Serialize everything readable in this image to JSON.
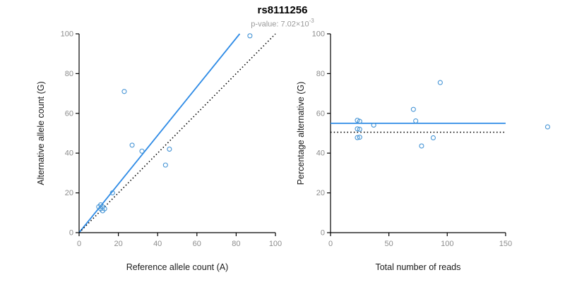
{
  "header": {
    "title": "rs8111256",
    "p_value_label": "p-value:",
    "p_value_mantissa": "7.02×10",
    "p_value_exponent": "-3"
  },
  "styles": {
    "line_blue": "#2e8be6",
    "point_blue": "#4695d6",
    "axis_color": "#000000",
    "tick_label_color": "#8c8c8c",
    "axis_label_color": "#1a1a1a",
    "title_color": "#000000",
    "subtitle_color": "#9a9a9a",
    "point_radius": 3
  },
  "chart_data": [
    {
      "type": "scatter",
      "title": "",
      "xlabel": "Reference allele count (A)",
      "ylabel": "Alternative allele count (G)",
      "xlim": [
        0,
        100
      ],
      "ylim": [
        0,
        100
      ],
      "xticks": [
        0,
        20,
        40,
        60,
        80,
        100
      ],
      "yticks": [
        0,
        20,
        40,
        60,
        80,
        100
      ],
      "grid": false,
      "legend": "none",
      "points": [
        [
          10,
          13
        ],
        [
          11,
          12
        ],
        [
          11,
          14
        ],
        [
          12,
          11
        ],
        [
          12,
          13
        ],
        [
          13,
          12
        ],
        [
          17,
          20
        ],
        [
          23,
          71
        ],
        [
          27,
          44
        ],
        [
          32,
          41
        ],
        [
          44,
          34
        ],
        [
          46,
          42
        ],
        [
          87,
          99
        ]
      ],
      "lines": [
        {
          "name": "fitted-proportion",
          "style": "solid",
          "color": "#2e8be6",
          "x1": 0,
          "y1": 0,
          "x2": 81.8,
          "y2": 100
        },
        {
          "name": "identity",
          "style": "dotted",
          "color": "#000000",
          "x1": 0,
          "y1": 0,
          "x2": 100,
          "y2": 100
        }
      ]
    },
    {
      "type": "scatter",
      "title": "",
      "xlabel": "Total number of reads",
      "ylabel": "Percentage alternative (G)",
      "xlim": [
        0,
        190
      ],
      "ylim": [
        0,
        100
      ],
      "xticks": [
        0,
        50,
        100,
        150
      ],
      "yticks": [
        0,
        20,
        40,
        60,
        80,
        100
      ],
      "grid": false,
      "legend": "none",
      "points": [
        [
          23,
          56.5
        ],
        [
          23,
          52.2
        ],
        [
          25,
          56.0
        ],
        [
          23,
          47.8
        ],
        [
          25,
          52.0
        ],
        [
          25,
          48.0
        ],
        [
          37,
          54.1
        ],
        [
          94,
          75.5
        ],
        [
          71,
          62.0
        ],
        [
          73,
          56.2
        ],
        [
          78,
          43.6
        ],
        [
          88,
          47.7
        ],
        [
          186,
          53.2
        ]
      ],
      "lines": [
        {
          "name": "fitted-percentage",
          "style": "solid",
          "color": "#2e8be6",
          "x1": 0,
          "y1": 55,
          "x2": 150,
          "y2": 55
        },
        {
          "name": "null-percentage",
          "style": "dotted",
          "color": "#000000",
          "x1": 0,
          "y1": 50.5,
          "x2": 150,
          "y2": 50.5
        }
      ]
    }
  ]
}
